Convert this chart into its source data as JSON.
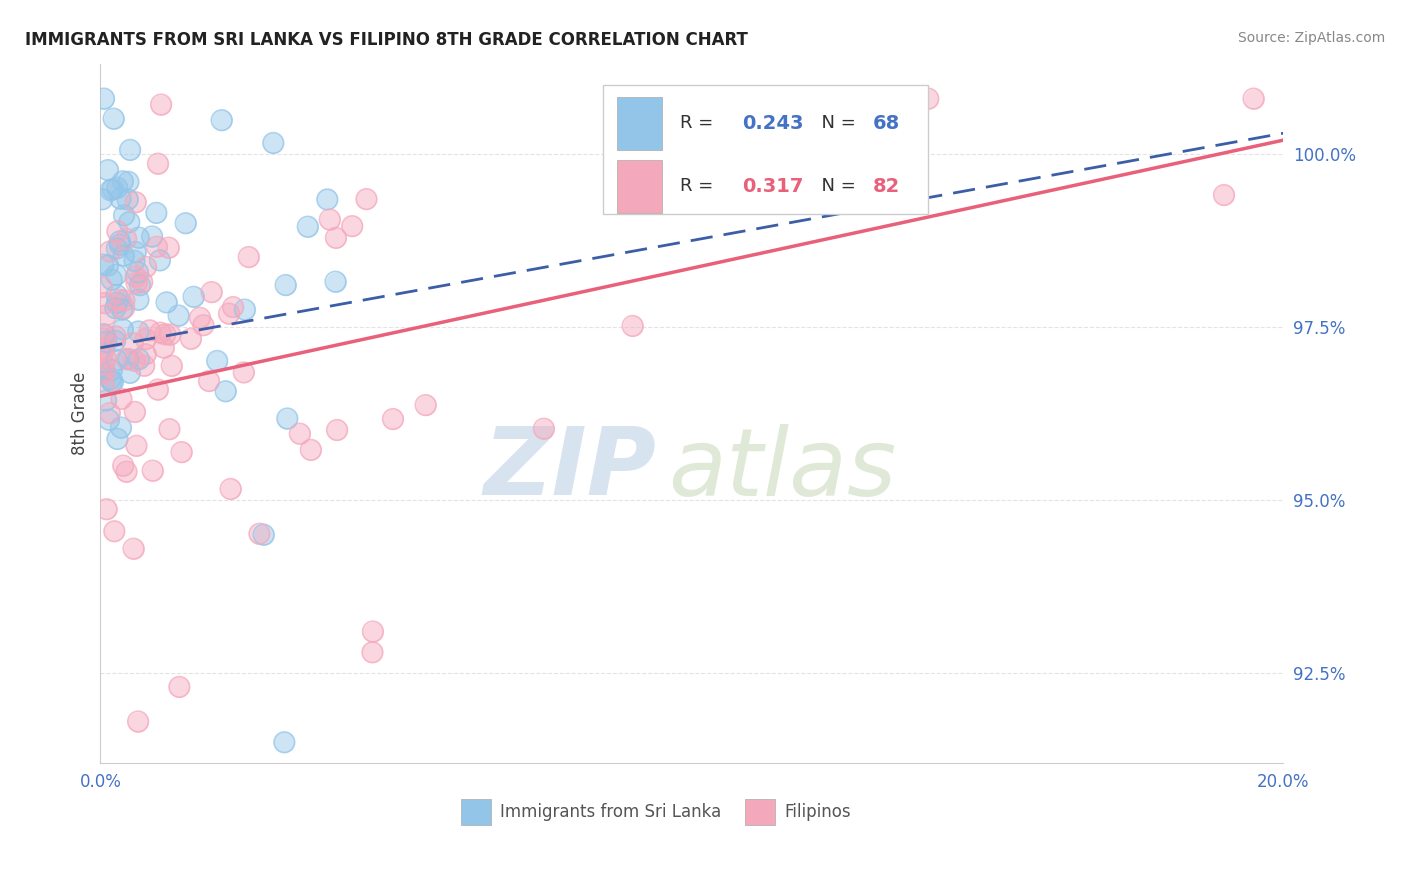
{
  "title": "IMMIGRANTS FROM SRI LANKA VS FILIPINO 8TH GRADE CORRELATION CHART",
  "source_text": "Source: ZipAtlas.com",
  "ylabel": "8th Grade",
  "y_tick_labels": [
    "92.5%",
    "95.0%",
    "97.5%",
    "100.0%"
  ],
  "y_tick_values": [
    92.5,
    95.0,
    97.5,
    100.0
  ],
  "x_range": [
    0.0,
    20.0
  ],
  "y_range": [
    91.2,
    101.3
  ],
  "color_blue": "#92C5E8",
  "color_pink": "#F4A8BC",
  "line_color_blue": "#3B5EA6",
  "line_color_pink": "#E8607A",
  "watermark_zip": "ZIP",
  "watermark_atlas": "atlas",
  "watermark_color_zip": "#B8CCE4",
  "watermark_color_atlas": "#C8D8B8",
  "legend_items": [
    {
      "label_r": "R = ",
      "val_r": "0.243",
      "label_n": "  N = ",
      "val_n": "68",
      "color": "#92C5E8"
    },
    {
      "label_r": "R = ",
      "val_r": "0.317",
      "label_n": "  N = ",
      "val_n": "82",
      "color": "#F4A8BC"
    }
  ],
  "bottom_legend": [
    "Immigrants from Sri Lanka",
    "Filipinos"
  ],
  "tick_color": "#4472C4",
  "grid_color": "#DDDDDD",
  "spine_color": "#CCCCCC"
}
